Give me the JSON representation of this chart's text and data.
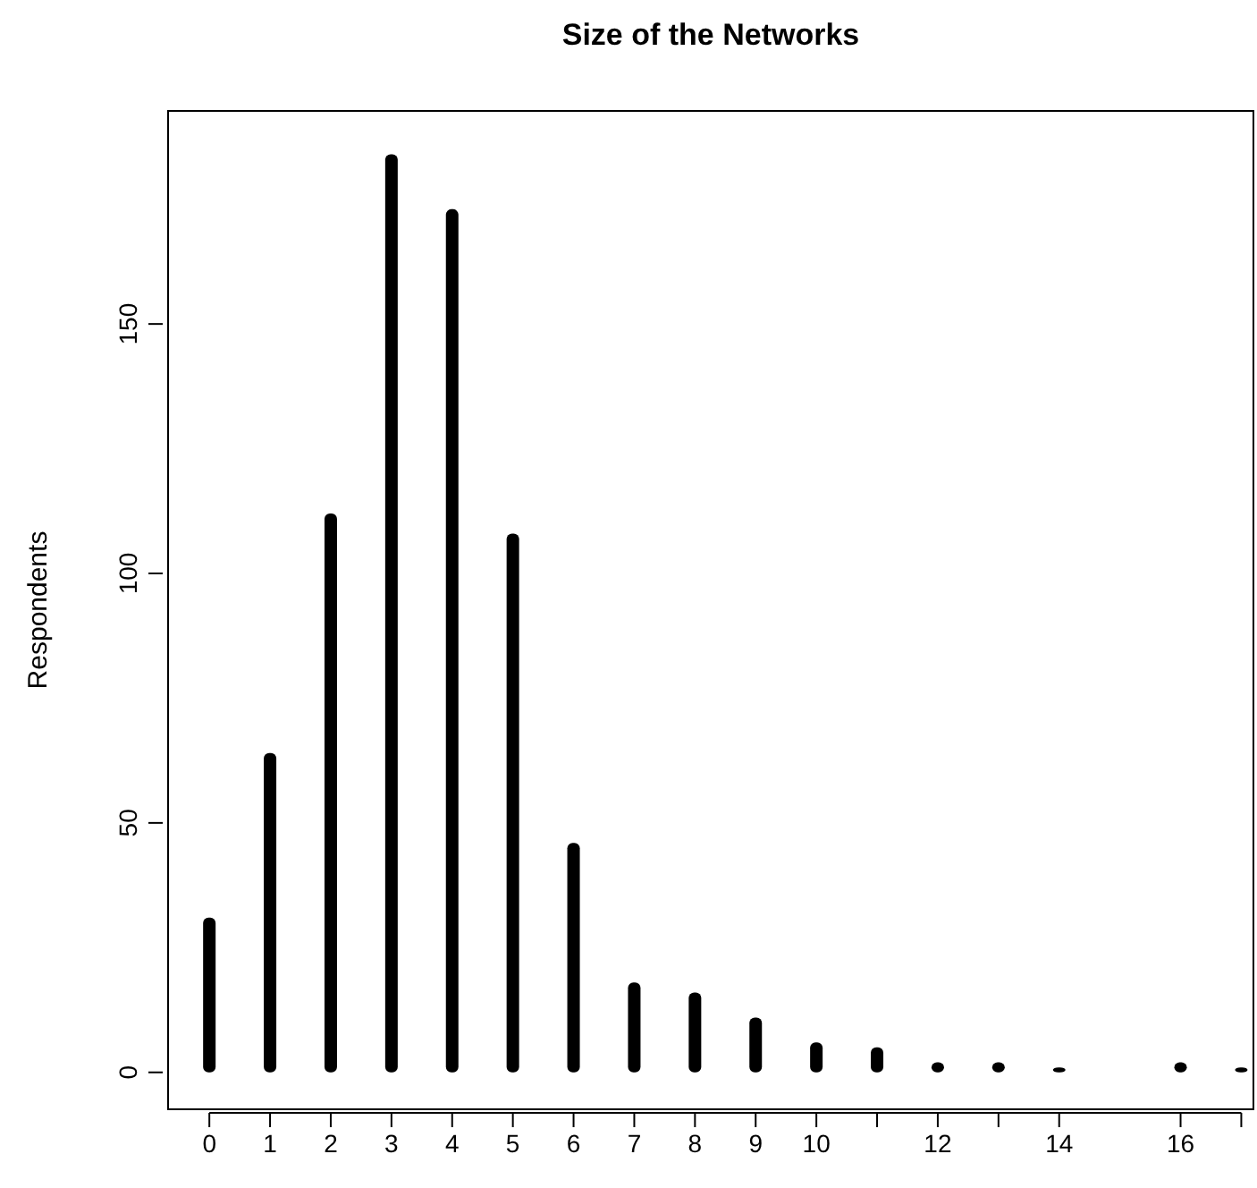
{
  "chart_data": {
    "type": "bar",
    "title": "Size of the Networks",
    "ylabel": "Respondents",
    "x": [
      0,
      1,
      2,
      3,
      4,
      5,
      6,
      7,
      8,
      9,
      10,
      11,
      12,
      13,
      14,
      16,
      17
    ],
    "values": [
      31,
      64,
      112,
      184,
      173,
      108,
      46,
      18,
      16,
      11,
      6,
      5,
      2,
      2,
      1,
      2,
      1
    ],
    "color": "#000000",
    "xlim": [
      -0.68,
      17.2
    ],
    "xticks": [
      0,
      1,
      2,
      3,
      4,
      5,
      6,
      7,
      8,
      9,
      10,
      {
        "value": 11,
        "label": null
      },
      12,
      {
        "value": 13,
        "label": null
      },
      14,
      16,
      {
        "value": 17,
        "label": null
      }
    ],
    "ylim": [
      -7.4,
      192.7
    ],
    "yticks": [
      0,
      50,
      100,
      150
    ],
    "grid": false
  }
}
